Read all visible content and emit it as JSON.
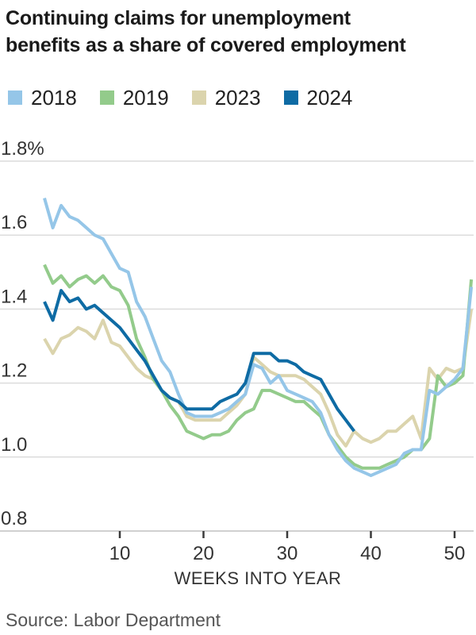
{
  "title": {
    "line1": "Continuing claims for unemployment",
    "line2": "benefits as a share of covered employment"
  },
  "legend": [
    {
      "label": "2018",
      "color": "#95c6e8"
    },
    {
      "label": "2019",
      "color": "#93cb8b"
    },
    {
      "label": "2023",
      "color": "#dbd4ad"
    },
    {
      "label": "2024",
      "color": "#0e6ba4"
    }
  ],
  "source": "Source: Labor Department",
  "chart_data": {
    "type": "line",
    "title": "Continuing claims for unemployment benefits as a share of covered employment",
    "xlabel": "WEEKS INTO YEAR",
    "ylabel": "",
    "xlim": [
      1,
      52
    ],
    "ylim": [
      0.8,
      1.8
    ],
    "grid": true,
    "legend_position": "top",
    "y_ticks": [
      {
        "value": 1.8,
        "label": "1.8%"
      },
      {
        "value": 1.6,
        "label": "1.6"
      },
      {
        "value": 1.4,
        "label": "1.4"
      },
      {
        "value": 1.2,
        "label": "1.2"
      },
      {
        "value": 1.0,
        "label": "1.0"
      },
      {
        "value": 0.8,
        "label": "0.8"
      }
    ],
    "x_ticks": [
      {
        "value": 10,
        "label": "10"
      },
      {
        "value": 20,
        "label": "20"
      },
      {
        "value": 30,
        "label": "30"
      },
      {
        "value": 40,
        "label": "40"
      },
      {
        "value": 50,
        "label": "50"
      }
    ],
    "x_unit": "week",
    "draw_order": [
      "2023",
      "2019",
      "2018",
      "2024"
    ],
    "series": [
      {
        "name": "2018",
        "color": "#95c6e8",
        "start_week": 1,
        "values": [
          1.7,
          1.62,
          1.68,
          1.65,
          1.64,
          1.62,
          1.6,
          1.59,
          1.55,
          1.51,
          1.5,
          1.42,
          1.38,
          1.32,
          1.26,
          1.23,
          1.17,
          1.12,
          1.11,
          1.11,
          1.11,
          1.12,
          1.13,
          1.15,
          1.17,
          1.25,
          1.24,
          1.2,
          1.22,
          1.18,
          1.17,
          1.16,
          1.15,
          1.12,
          1.06,
          1.02,
          0.99,
          0.97,
          0.96,
          0.95,
          0.96,
          0.97,
          0.98,
          1.01,
          1.02,
          1.02,
          1.18,
          1.17,
          1.19,
          1.21,
          1.24,
          1.46
        ]
      },
      {
        "name": "2019",
        "color": "#93cb8b",
        "start_week": 1,
        "values": [
          1.52,
          1.47,
          1.49,
          1.46,
          1.48,
          1.49,
          1.47,
          1.49,
          1.46,
          1.45,
          1.41,
          1.32,
          1.27,
          1.21,
          1.18,
          1.14,
          1.11,
          1.07,
          1.06,
          1.05,
          1.06,
          1.06,
          1.07,
          1.1,
          1.12,
          1.13,
          1.18,
          1.18,
          1.17,
          1.16,
          1.15,
          1.15,
          1.13,
          1.11,
          1.06,
          1.03,
          1.0,
          0.98,
          0.97,
          0.97,
          0.97,
          0.98,
          0.99,
          1.0,
          1.02,
          1.02,
          1.05,
          1.22,
          1.19,
          1.2,
          1.22,
          1.48
        ]
      },
      {
        "name": "2023",
        "color": "#dbd4ad",
        "start_week": 1,
        "values": [
          1.32,
          1.28,
          1.32,
          1.33,
          1.35,
          1.34,
          1.32,
          1.37,
          1.31,
          1.3,
          1.27,
          1.24,
          1.22,
          1.21,
          1.18,
          1.16,
          1.15,
          1.11,
          1.1,
          1.1,
          1.1,
          1.1,
          1.12,
          1.14,
          1.17,
          1.27,
          1.25,
          1.23,
          1.22,
          1.22,
          1.22,
          1.21,
          1.19,
          1.17,
          1.12,
          1.06,
          1.03,
          1.07,
          1.05,
          1.04,
          1.05,
          1.07,
          1.07,
          1.09,
          1.11,
          1.05,
          1.24,
          1.21,
          1.24,
          1.23,
          1.24,
          1.4
        ]
      },
      {
        "name": "2024",
        "color": "#0e6ba4",
        "start_week": 1,
        "values": [
          1.42,
          1.37,
          1.45,
          1.42,
          1.43,
          1.4,
          1.41,
          1.39,
          1.37,
          1.35,
          1.32,
          1.29,
          1.26,
          1.22,
          1.18,
          1.16,
          1.15,
          1.13,
          1.13,
          1.13,
          1.13,
          1.15,
          1.16,
          1.17,
          1.2,
          1.28,
          1.28,
          1.28,
          1.26,
          1.26,
          1.25,
          1.23,
          1.22,
          1.21,
          1.17,
          1.13,
          1.1,
          1.07
        ]
      }
    ],
    "source": "Source: Labor Department"
  },
  "style": {
    "grid_color": "#dcdcdc",
    "baseline_color": "#c0c0c0",
    "tick_color": "#3a3a3a",
    "axis_text_color": "#333333",
    "line_width": 4
  }
}
